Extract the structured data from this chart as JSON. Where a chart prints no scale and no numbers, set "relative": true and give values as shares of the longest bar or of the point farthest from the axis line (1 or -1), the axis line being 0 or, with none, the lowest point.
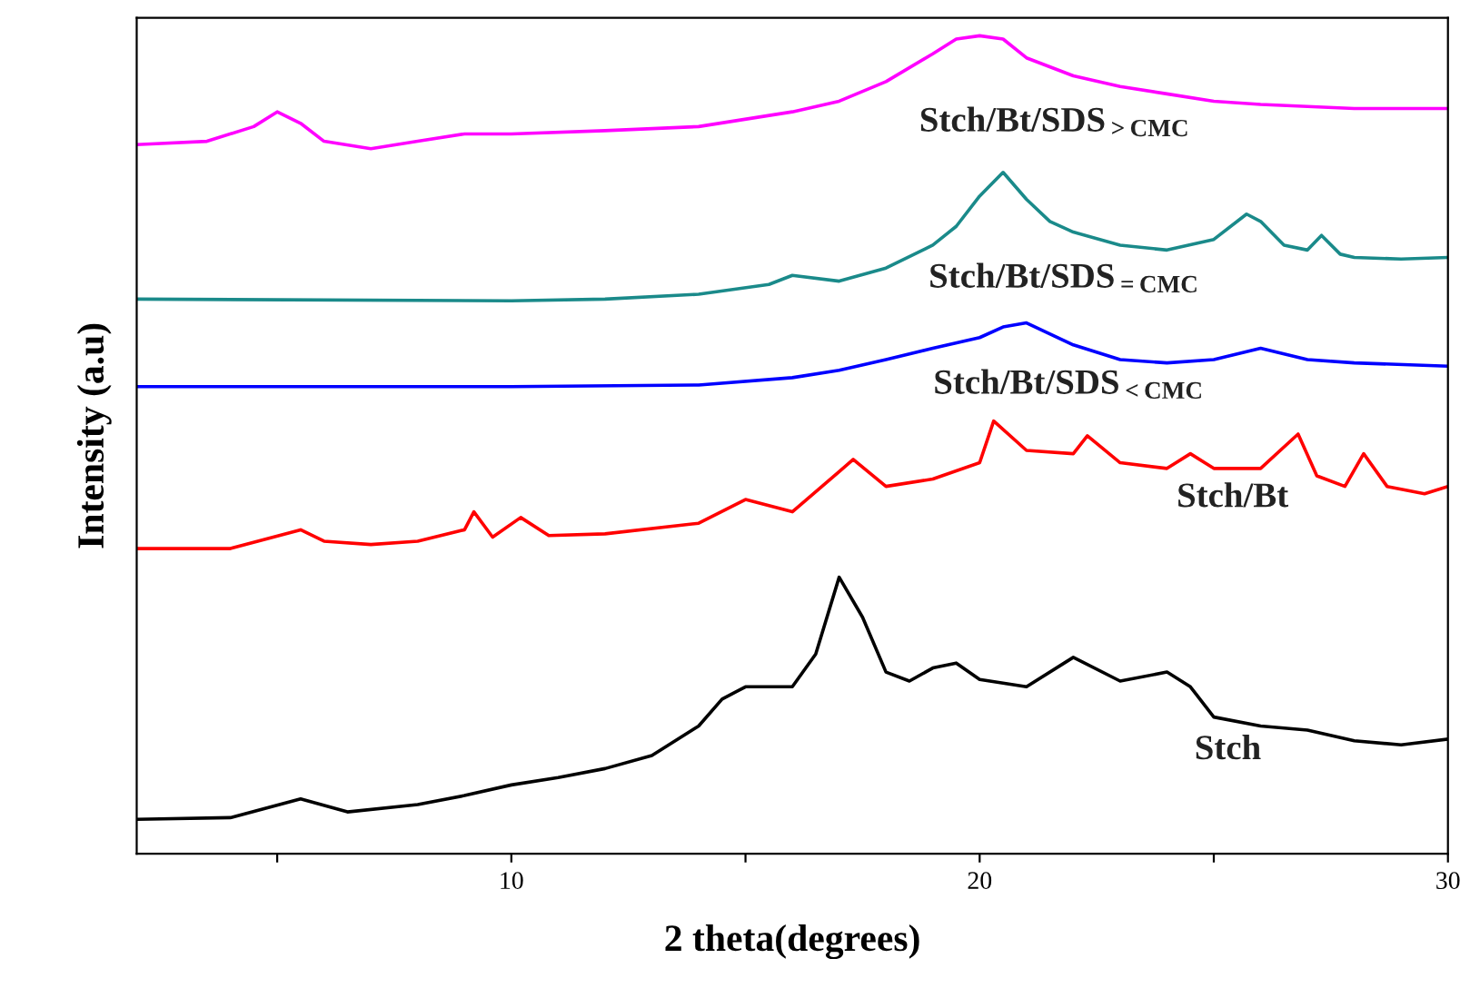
{
  "chart_data": {
    "type": "line",
    "relative": true,
    "xlabel": "2 theta(degrees)",
    "ylabel": "Intensity (a.u)",
    "xlim": [
      2,
      30
    ],
    "xticks": [
      {
        "value": 5,
        "label": null
      },
      10,
      {
        "value": 15,
        "label": null
      },
      20,
      {
        "value": 25,
        "label": null
      },
      30
    ],
    "grid": false,
    "legend": false,
    "marker": "none",
    "line_style": "solid",
    "series": [
      {
        "name": "Stch/Bt/SDS$_{>CMC}$",
        "color": "#ff00ff",
        "x": [
          2,
          3.5,
          4.5,
          5,
          5.5,
          6,
          7,
          8,
          9,
          10,
          12,
          14,
          16,
          17,
          18,
          19,
          19.5,
          20,
          20.5,
          21,
          22,
          23,
          24,
          25,
          26,
          28,
          30
        ],
        "values": [
          0.867,
          0.871,
          0.889,
          0.907,
          0.893,
          0.871,
          0.862,
          0.871,
          0.88,
          0.88,
          0.884,
          0.889,
          0.907,
          0.92,
          0.944,
          0.978,
          0.996,
          1.0,
          0.996,
          0.973,
          0.951,
          0.938,
          0.929,
          0.92,
          0.916,
          0.911,
          0.911
        ]
      },
      {
        "name": "Stch/Bt/SDS$_{=CMC}$",
        "color": "#1a8a8a",
        "x": [
          2,
          10,
          12,
          14,
          15.5,
          16,
          17,
          18,
          19,
          19.5,
          20,
          20.5,
          21,
          21.5,
          22,
          23,
          24,
          25,
          25.7,
          26,
          26.5,
          27,
          27.3,
          27.7,
          28,
          29,
          30
        ],
        "values": [
          0.678,
          0.676,
          0.678,
          0.684,
          0.696,
          0.707,
          0.7,
          0.716,
          0.744,
          0.767,
          0.804,
          0.833,
          0.8,
          0.773,
          0.76,
          0.744,
          0.738,
          0.751,
          0.782,
          0.773,
          0.744,
          0.738,
          0.756,
          0.733,
          0.729,
          0.727,
          0.729
        ]
      },
      {
        "name": "Stch/Bt/SDS$_{<CMC}$",
        "color": "#0000ff",
        "x": [
          2,
          10,
          14,
          16,
          17,
          18,
          19,
          20,
          20.5,
          21,
          22,
          23,
          24,
          25,
          26,
          27,
          28,
          30
        ],
        "values": [
          0.571,
          0.571,
          0.573,
          0.582,
          0.591,
          0.604,
          0.618,
          0.631,
          0.644,
          0.649,
          0.622,
          0.604,
          0.6,
          0.604,
          0.618,
          0.604,
          0.6,
          0.596
        ]
      },
      {
        "name": "Stch/Bt",
        "color": "#ff0000",
        "x": [
          2,
          4,
          5.5,
          6,
          7,
          8,
          9,
          9.2,
          9.6,
          10.2,
          10.8,
          12,
          14,
          15,
          16,
          17,
          17.3,
          18,
          19,
          20,
          20.3,
          21,
          22,
          22.3,
          23,
          24,
          24.5,
          25,
          26,
          26.8,
          27.2,
          27.8,
          28.2,
          28.7,
          29.5,
          30
        ],
        "values": [
          0.373,
          0.373,
          0.396,
          0.382,
          0.378,
          0.382,
          0.396,
          0.418,
          0.387,
          0.411,
          0.389,
          0.391,
          0.404,
          0.433,
          0.418,
          0.467,
          0.482,
          0.449,
          0.458,
          0.478,
          0.529,
          0.493,
          0.489,
          0.511,
          0.478,
          0.471,
          0.489,
          0.471,
          0.471,
          0.513,
          0.462,
          0.449,
          0.489,
          0.449,
          0.44,
          0.449
        ]
      },
      {
        "name": "Stch",
        "color": "#000000",
        "x": [
          2,
          4,
          5.5,
          6.5,
          8,
          9,
          10,
          11,
          12,
          13,
          14,
          14.5,
          15,
          16,
          16.5,
          17,
          17.5,
          18,
          18.5,
          19,
          19.5,
          20,
          21,
          22,
          23,
          24,
          24.5,
          25,
          26,
          27,
          28,
          29,
          30
        ],
        "values": [
          0.042,
          0.044,
          0.067,
          0.051,
          0.06,
          0.071,
          0.084,
          0.093,
          0.104,
          0.12,
          0.156,
          0.189,
          0.204,
          0.204,
          0.244,
          0.338,
          0.289,
          0.222,
          0.211,
          0.227,
          0.233,
          0.213,
          0.204,
          0.24,
          0.211,
          0.222,
          0.204,
          0.167,
          0.156,
          0.151,
          0.138,
          0.133,
          0.14
        ]
      }
    ]
  }
}
